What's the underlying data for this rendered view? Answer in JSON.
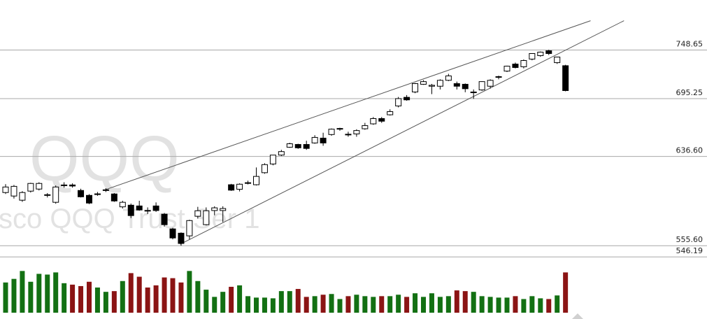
{
  "chart_data": {
    "type": "candlestick",
    "watermark": "QQQ",
    "watermark_subtitle": "sco QQQ Trust Ser 1",
    "log_scale": true,
    "ylim": [
      544,
      808
    ],
    "yticks": [
      748.65,
      695.25,
      {
        "value": 636.6,
        "label": "636.60"
      },
      {
        "value": 555.6,
        "label": "555.60"
      },
      546.19
    ],
    "up_color": "#ffffff",
    "down_color": "#000000",
    "open": [
      602.5,
      599.3,
      595.5,
      603.8,
      605.7,
      600,
      593.6,
      609,
      609.5,
      604.4,
      599.9,
      601,
      604.4,
      601.2,
      589.5,
      591,
      590.3,
      586.3,
      590.3,
      583,
      570,
      566.3,
      564,
      581.1,
      573.7,
      586.2,
      586.2,
      609.7,
      605.5,
      611,
      609.7,
      621,
      629.3,
      637.9,
      645.6,
      648.3,
      648.3,
      649.8,
      654.6,
      658.2,
      664,
      658.5,
      658.8,
      664,
      669,
      674.4,
      678.3,
      687.5,
      696.6,
      702.3,
      710.6,
      708.5,
      708.5,
      714.9,
      711.3,
      710.6,
      701.5,
      704.5,
      708.5,
      718.2,
      725,
      732.8,
      729.8,
      738.4,
      742.3,
      747.8,
      734.4,
      731
    ],
    "high": [
      610.2,
      609.5,
      603.8,
      611.5,
      612,
      602,
      609,
      612,
      611,
      606,
      601,
      603,
      606.5,
      602,
      595,
      592.5,
      595,
      589,
      593.5,
      584,
      571,
      567,
      578,
      589.5,
      589,
      590,
      590,
      610.5,
      611,
      613.5,
      626,
      630,
      638,
      643,
      650,
      649,
      652,
      657.5,
      660,
      664.3,
      665,
      661,
      663.5,
      670,
      676,
      676,
      684,
      697,
      699,
      712,
      715,
      711,
      716,
      722,
      713.5,
      711.5,
      705,
      714,
      716,
      720,
      731,
      734.5,
      738,
      745,
      747,
      749,
      741,
      732
    ],
    "low": [
      601.2,
      597,
      594,
      602.5,
      604.4,
      598,
      592.3,
      607,
      607,
      598,
      592,
      599.5,
      603,
      594,
      588,
      579.5,
      586,
      583,
      585,
      572,
      561,
      555.6,
      561,
      579,
      573,
      582,
      576,
      604,
      603.5,
      610,
      609,
      620,
      628,
      637,
      645,
      644,
      643,
      649,
      647,
      657,
      662,
      656,
      656,
      663,
      668,
      670,
      677.5,
      686,
      693,
      701,
      710,
      700,
      705,
      714,
      705,
      702,
      695,
      703.5,
      706,
      716,
      724,
      728,
      728,
      737,
      741,
      743,
      733,
      703
    ],
    "close": [
      607.6,
      608.2,
      602.5,
      610.9,
      610.9,
      600.5,
      607.6,
      609.5,
      608.5,
      598.6,
      592.9,
      601.3,
      605,
      594.8,
      593.6,
      581.7,
      586.7,
      586,
      586.2,
      573.7,
      562.2,
      557.5,
      577.3,
      586,
      586,
      588.6,
      588,
      604.7,
      610.2,
      611.6,
      617.5,
      628.7,
      637.9,
      641.3,
      649,
      645,
      644.4,
      655.3,
      649.8,
      663.6,
      664.3,
      658.2,
      662.2,
      667.2,
      674.4,
      671.7,
      681.6,
      695.25,
      693.9,
      711.3,
      713.5,
      709.5,
      714.9,
      719.7,
      708.5,
      705.8,
      702.3,
      713.5,
      714.9,
      718.9,
      730.5,
      729,
      736.8,
      744.7,
      746.3,
      744.7,
      740.7,
      703.8
    ],
    "volume": {
      "ylim": [
        0,
        70
      ],
      "up_color": "#137013",
      "down_color": "#8b1414",
      "values": [
        42,
        47,
        58,
        43,
        54,
        53,
        56,
        41,
        39,
        37,
        43,
        35,
        29,
        30,
        44,
        55,
        50,
        35,
        38,
        49,
        48,
        42,
        58,
        44,
        32,
        22,
        29,
        36,
        38,
        23,
        21,
        21,
        20,
        30,
        30,
        33,
        22,
        23,
        25,
        26,
        19,
        23,
        25,
        23,
        22,
        23,
        23,
        25,
        22,
        27,
        22,
        27,
        22,
        23,
        31,
        30,
        29,
        23,
        22,
        21,
        21,
        23,
        19,
        23,
        20,
        19,
        24,
        56
      ]
    },
    "trendlines": [
      {
        "x": [
          11.9,
          70.0
        ],
        "y": [
          605,
          782.9
        ]
      },
      {
        "x": [
          20.9,
          74.0
        ],
        "y": [
          556.9,
          782.9
        ]
      }
    ]
  }
}
